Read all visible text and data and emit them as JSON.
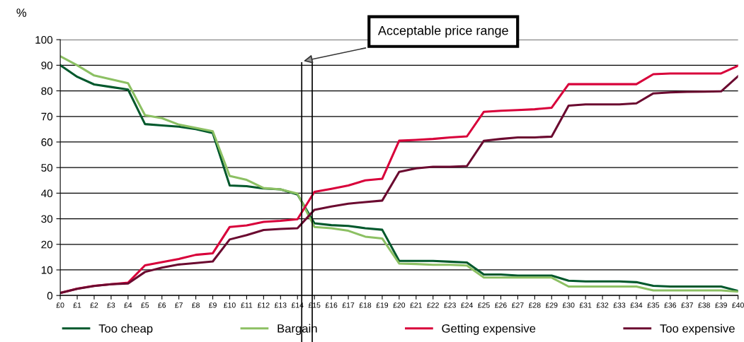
{
  "chart_data": {
    "type": "line",
    "ylabel": "%",
    "x": [
      0,
      1,
      2,
      3,
      4,
      5,
      6,
      7,
      8,
      9,
      10,
      11,
      12,
      13,
      14,
      15,
      16,
      17,
      18,
      19,
      20,
      21,
      22,
      23,
      24,
      25,
      26,
      27,
      28,
      29,
      30,
      31,
      32,
      33,
      34,
      35,
      36,
      37,
      38,
      39,
      40
    ],
    "xlim": [
      0,
      40
    ],
    "xticks": [
      {
        "value": 0,
        "label": "£0"
      },
      {
        "value": 1,
        "label": "£1"
      },
      {
        "value": 2,
        "label": "£2"
      },
      {
        "value": 3,
        "label": "£3"
      },
      {
        "value": 4,
        "label": "£4"
      },
      {
        "value": 5,
        "label": "£5"
      },
      {
        "value": 6,
        "label": "£6"
      },
      {
        "value": 7,
        "label": "£7"
      },
      {
        "value": 8,
        "label": "£8"
      },
      {
        "value": 9,
        "label": "£9"
      },
      {
        "value": 10,
        "label": "£10"
      },
      {
        "value": 11,
        "label": "£11"
      },
      {
        "value": 12,
        "label": "£12"
      },
      {
        "value": 13,
        "label": "£13"
      },
      {
        "value": 14,
        "label": "£14"
      },
      {
        "value": 15,
        "label": "£15"
      },
      {
        "value": 16,
        "label": "£16"
      },
      {
        "value": 17,
        "label": "£17"
      },
      {
        "value": 18,
        "label": "£18"
      },
      {
        "value": 19,
        "label": "£19"
      },
      {
        "value": 20,
        "label": "£20"
      },
      {
        "value": 21,
        "label": "£21"
      },
      {
        "value": 22,
        "label": "£22"
      },
      {
        "value": 23,
        "label": "£23"
      },
      {
        "value": 24,
        "label": "£24"
      },
      {
        "value": 25,
        "label": "£25"
      },
      {
        "value": 26,
        "label": "£26"
      },
      {
        "value": 27,
        "label": "£27"
      },
      {
        "value": 28,
        "label": "£28"
      },
      {
        "value": 29,
        "label": "£29"
      },
      {
        "value": 30,
        "label": "£30"
      },
      {
        "value": 31,
        "label": "£31"
      },
      {
        "value": 32,
        "label": "£32"
      },
      {
        "value": 33,
        "label": "£33"
      },
      {
        "value": 34,
        "label": "£34"
      },
      {
        "value": 35,
        "label": "£35"
      },
      {
        "value": 36,
        "label": "£36"
      },
      {
        "value": 37,
        "label": "£37"
      },
      {
        "value": 38,
        "label": "£38"
      },
      {
        "value": 39,
        "label": "£39"
      },
      {
        "value": 40,
        "label": "£40"
      }
    ],
    "ylim": [
      0,
      100
    ],
    "yticks": [
      0,
      10,
      20,
      30,
      40,
      50,
      60,
      70,
      80,
      90,
      100
    ],
    "grid": "y",
    "legend": "bottom",
    "marker": "none",
    "line_style": "solid",
    "series": [
      {
        "name": "Too cheap",
        "color": "#00582c",
        "values": [
          90,
          85.5,
          82.5,
          81.5,
          80.5,
          67,
          66.5,
          66,
          65,
          63.5,
          43,
          42.7,
          41.8,
          41.5,
          39.5,
          28.2,
          27.5,
          27.2,
          26.3,
          25.7,
          13.5,
          13.5,
          13.5,
          13.2,
          12.9,
          8.2,
          8.2,
          7.8,
          7.8,
          7.8,
          5.8,
          5.5,
          5.5,
          5.5,
          5.2,
          3.8,
          3.5,
          3.5,
          3.5,
          3.5,
          1.8
        ]
      },
      {
        "name": "Bargain",
        "color": "#8cc063",
        "values": [
          93.5,
          90,
          86,
          84.5,
          83,
          70.5,
          69.3,
          66.8,
          65.5,
          64.2,
          46.7,
          45.2,
          42,
          41.5,
          39.8,
          26.8,
          26.3,
          25.3,
          23,
          22.3,
          12.5,
          12.3,
          12,
          12,
          11.7,
          7,
          7,
          7,
          7,
          7,
          3.5,
          3.5,
          3.5,
          3.5,
          3.5,
          2,
          2,
          2,
          2,
          2,
          1.5
        ]
      },
      {
        "name": "Getting expensive",
        "color": "#d8003a",
        "values": [
          1,
          2.7,
          3.8,
          4.4,
          5,
          11.8,
          13,
          14.3,
          15.9,
          16.5,
          26.8,
          27.4,
          28.8,
          29.2,
          29.8,
          40.5,
          41.7,
          43,
          45,
          45.6,
          60.5,
          60.8,
          61.2,
          61.8,
          62.2,
          71.8,
          72.2,
          72.5,
          72.8,
          73.4,
          82.6,
          82.6,
          82.6,
          82.6,
          82.6,
          86.5,
          86.8,
          86.8,
          86.8,
          86.8,
          89.8
        ]
      },
      {
        "name": "Too expensive",
        "color": "#6b0a30",
        "values": [
          1,
          2.6,
          3.7,
          4.4,
          4.7,
          9.2,
          10.9,
          12.1,
          12.7,
          13.3,
          21.9,
          23.6,
          25.6,
          26,
          26.3,
          33.5,
          34.8,
          35.9,
          36.5,
          37.1,
          48.3,
          49.7,
          50.3,
          50.3,
          50.6,
          60.5,
          61.2,
          61.8,
          61.8,
          62.1,
          74.2,
          74.7,
          74.7,
          74.7,
          75.1,
          79,
          79.4,
          79.6,
          79.7,
          79.8,
          85.7
        ]
      }
    ],
    "ref_lines": [
      {
        "axis": "x",
        "value": 14.25,
        "color": "#000000"
      },
      {
        "axis": "x",
        "value": 14.87,
        "color": "#000000"
      }
    ],
    "annotations": [
      "Acceptable price range"
    ]
  }
}
